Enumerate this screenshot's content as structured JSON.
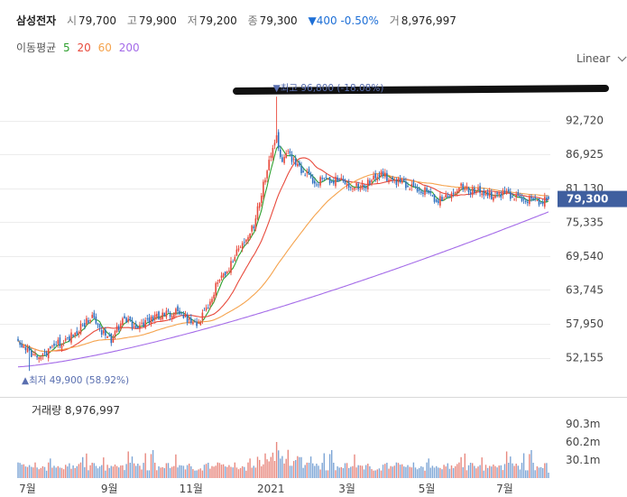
{
  "header": {
    "name": "삼성전자",
    "open_label": "시",
    "open": "79,700",
    "high_label": "고",
    "high": "79,900",
    "low_label": "저",
    "low": "79,200",
    "close_label": "종",
    "close": "79,300",
    "change": "▼400 -0.50%",
    "volume_label": "거",
    "volume": "8,976,997"
  },
  "ma_legend": {
    "label": "이동평균",
    "periods": [
      "5",
      "20",
      "60",
      "200"
    ],
    "colors": [
      "#2ea02e",
      "#e84a3c",
      "#f5a34d",
      "#a46be8"
    ]
  },
  "scale_selector": {
    "label": "Linear"
  },
  "chart_data": [
    {
      "type": "candlestick",
      "y_ticks": [
        "92,720",
        "86,925",
        "81,130",
        "75,335",
        "69,540",
        "63,745",
        "57,950",
        "52,155"
      ],
      "y_tick_values": [
        92720,
        86925,
        81130,
        75335,
        69540,
        63745,
        57950,
        52155
      ],
      "ylim": [
        47000,
        101000
      ],
      "x_ticks": [
        "7월",
        "9월",
        "11월",
        "2021",
        "3월",
        "5월",
        "7월"
      ],
      "x_tick_index": [
        5,
        48,
        91,
        133,
        173,
        215,
        256
      ],
      "current_price_label": "79,300",
      "current_price": 79300,
      "max_label": "▼최고 96,800 (-18.08%)",
      "max_value": 96800,
      "min_label": "▲최저 49,900 (58.92%)",
      "min_value": 49900,
      "colors": {
        "up": "#e84a3c",
        "down": "#2c6fbf",
        "current": "#3f5f9f",
        "annotation": "#5a6fb0"
      },
      "grid": true
    },
    {
      "type": "bar",
      "title": "거래량 8,976,997",
      "y_ticks": [
        "90.3m",
        "60.2m",
        "30.1m"
      ],
      "y_tick_values": [
        90.3,
        60.2,
        30.1
      ],
      "ylim": [
        0,
        120
      ],
      "units": "m"
    }
  ]
}
